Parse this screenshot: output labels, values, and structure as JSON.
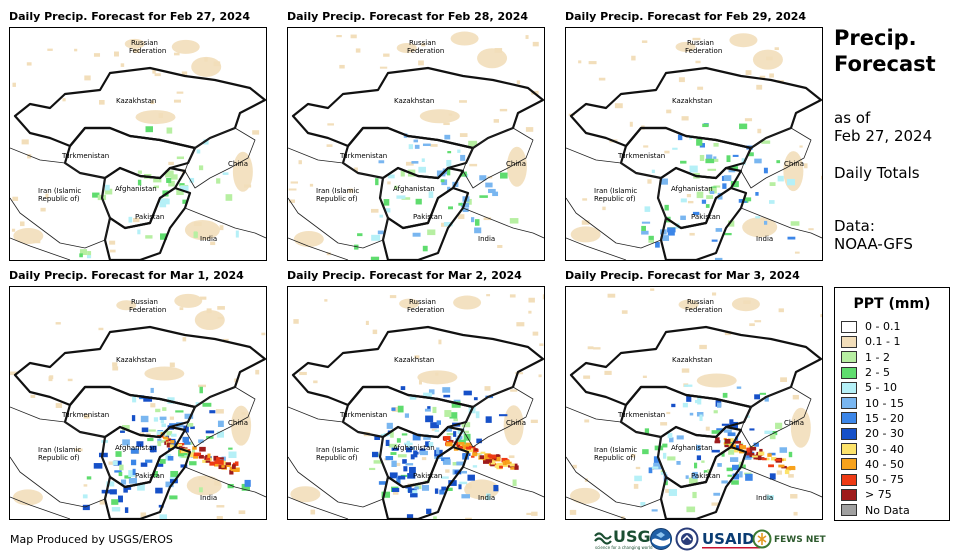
{
  "panels": [
    {
      "title": "Daily Precip. Forecast for Feb 27, 2024",
      "intensity": 1
    },
    {
      "title": "Daily Precip. Forecast for Feb 28, 2024",
      "intensity": 2
    },
    {
      "title": "Daily Precip. Forecast for Feb 29, 2024",
      "intensity": 3
    },
    {
      "title": "Daily Precip. Forecast for Mar 1, 2024",
      "intensity": 5
    },
    {
      "title": "Daily Precip. Forecast for Mar 2, 2024",
      "intensity": 6
    },
    {
      "title": "Daily Precip. Forecast for Mar 3, 2024",
      "intensity": 4
    }
  ],
  "map_labels": {
    "russia_1": "Russian",
    "russia_2": "Federation",
    "kazakhstan": "Kazakhstan",
    "turkmenistan": "Turkmenistan",
    "china": "China",
    "iran_1": "Iran  (Islamic",
    "iran_2": "Republic of)",
    "afghanistan": "Afghanistan",
    "pakistan": "Pakistan",
    "india": "India"
  },
  "sidebar": {
    "title_line1": "Precip.",
    "title_line2": "Forecast",
    "as_of": "as of",
    "date": "Feb 27, 2024",
    "totals": "Daily Totals",
    "data_label": "Data:",
    "data_source": "NOAA-GFS"
  },
  "legend": {
    "title": "PPT (mm)",
    "items": [
      {
        "label": "0 - 0.1",
        "color": "#ffffff"
      },
      {
        "label": "0.1 - 1",
        "color": "#f2deba"
      },
      {
        "label": "1 - 2",
        "color": "#b7efa2"
      },
      {
        "label": "2 - 5",
        "color": "#5fdc6e"
      },
      {
        "label": "5 - 10",
        "color": "#b5f0f7"
      },
      {
        "label": "10 - 15",
        "color": "#79b6f0"
      },
      {
        "label": "15 - 20",
        "color": "#3c86e8"
      },
      {
        "label": "20 - 30",
        "color": "#1650c8"
      },
      {
        "label": "30 - 40",
        "color": "#fde36a"
      },
      {
        "label": "40 - 50",
        "color": "#f8a21c"
      },
      {
        "label": "50 - 75",
        "color": "#ee3a14"
      },
      {
        "label": "> 75",
        "color": "#9e1b1b"
      },
      {
        "label": "No Data",
        "color": "#a0a0a0"
      }
    ]
  },
  "footer": {
    "credit": "Map Produced by USGS/EROS"
  },
  "logos": {
    "usgs": "USGS",
    "usgs_tagline": "science for a changing world",
    "usaid": "USAID",
    "fews": "FEWS NET"
  }
}
